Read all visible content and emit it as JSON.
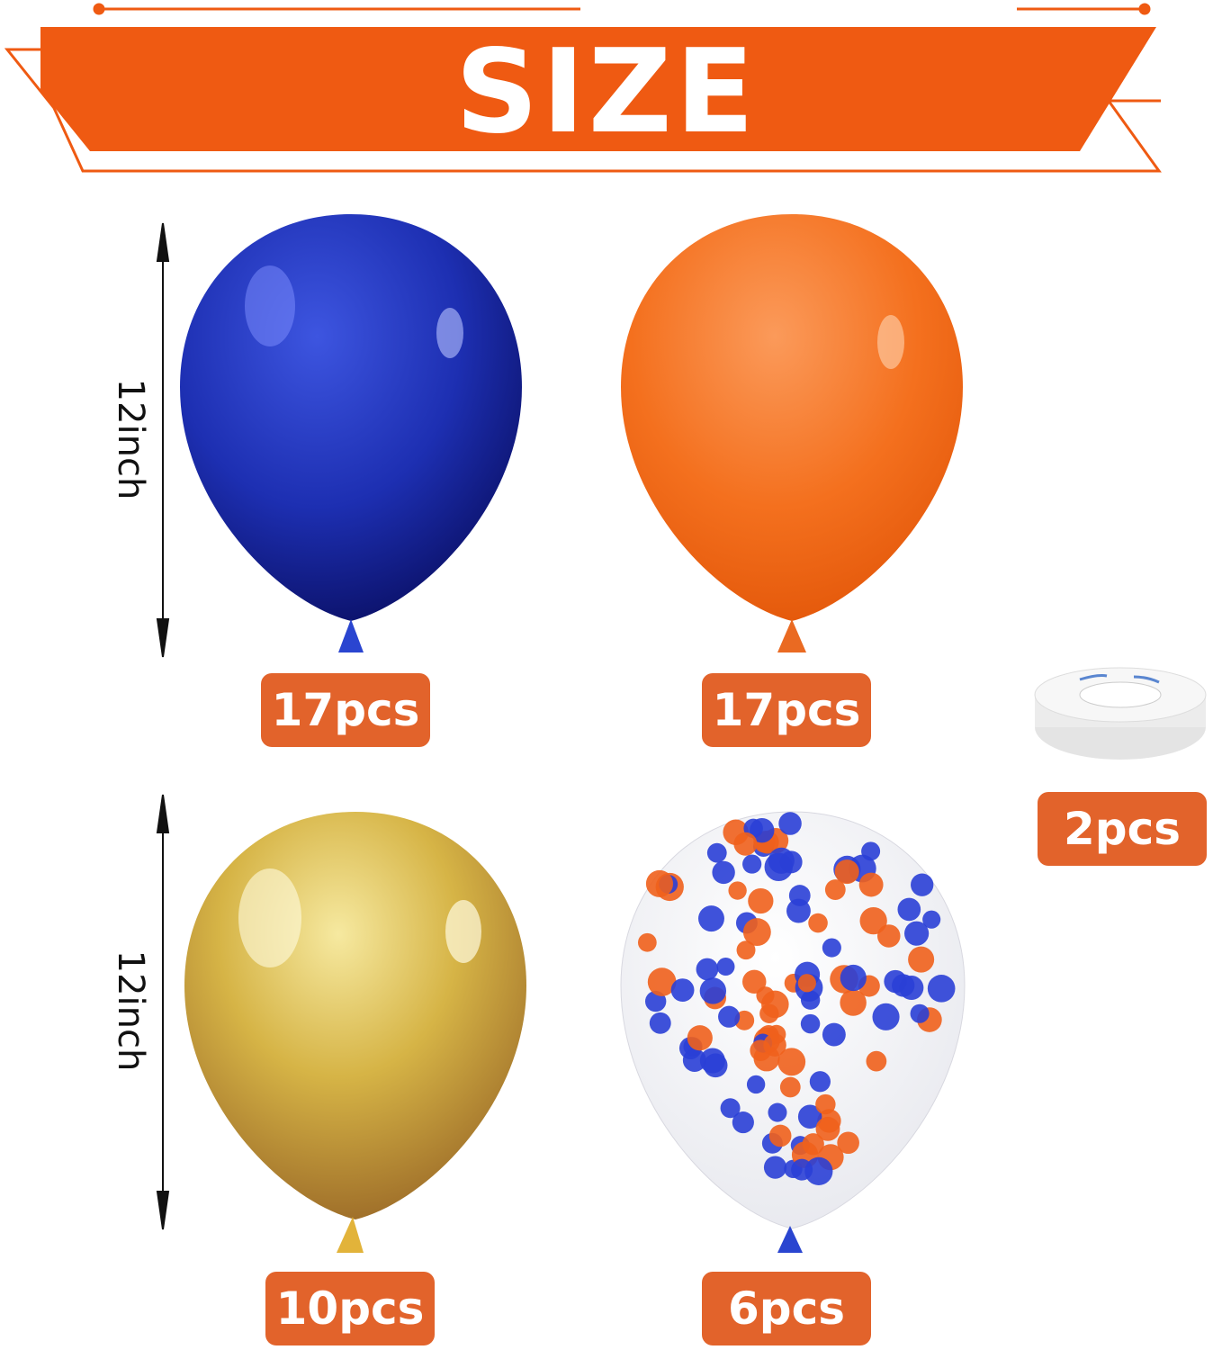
{
  "banner": {
    "title": "SIZE",
    "color": "#ef5a12"
  },
  "dimensions": [
    {
      "label": "12inch"
    },
    {
      "label": "12inch"
    }
  ],
  "items": [
    {
      "name": "blue-balloon",
      "color": "#1c2fb0",
      "quantity": "17pcs"
    },
    {
      "name": "orange-balloon",
      "color": "#f4701e",
      "quantity": "17pcs"
    },
    {
      "name": "ribbon-spool",
      "color": "#eeeeee",
      "quantity": "2pcs"
    },
    {
      "name": "gold-balloon",
      "color": "#c9a23a",
      "quantity": "10pcs"
    },
    {
      "name": "confetti-balloon",
      "color": "#f4f4f6",
      "quantity": "6pcs"
    }
  ],
  "label_color": "#e2632b"
}
